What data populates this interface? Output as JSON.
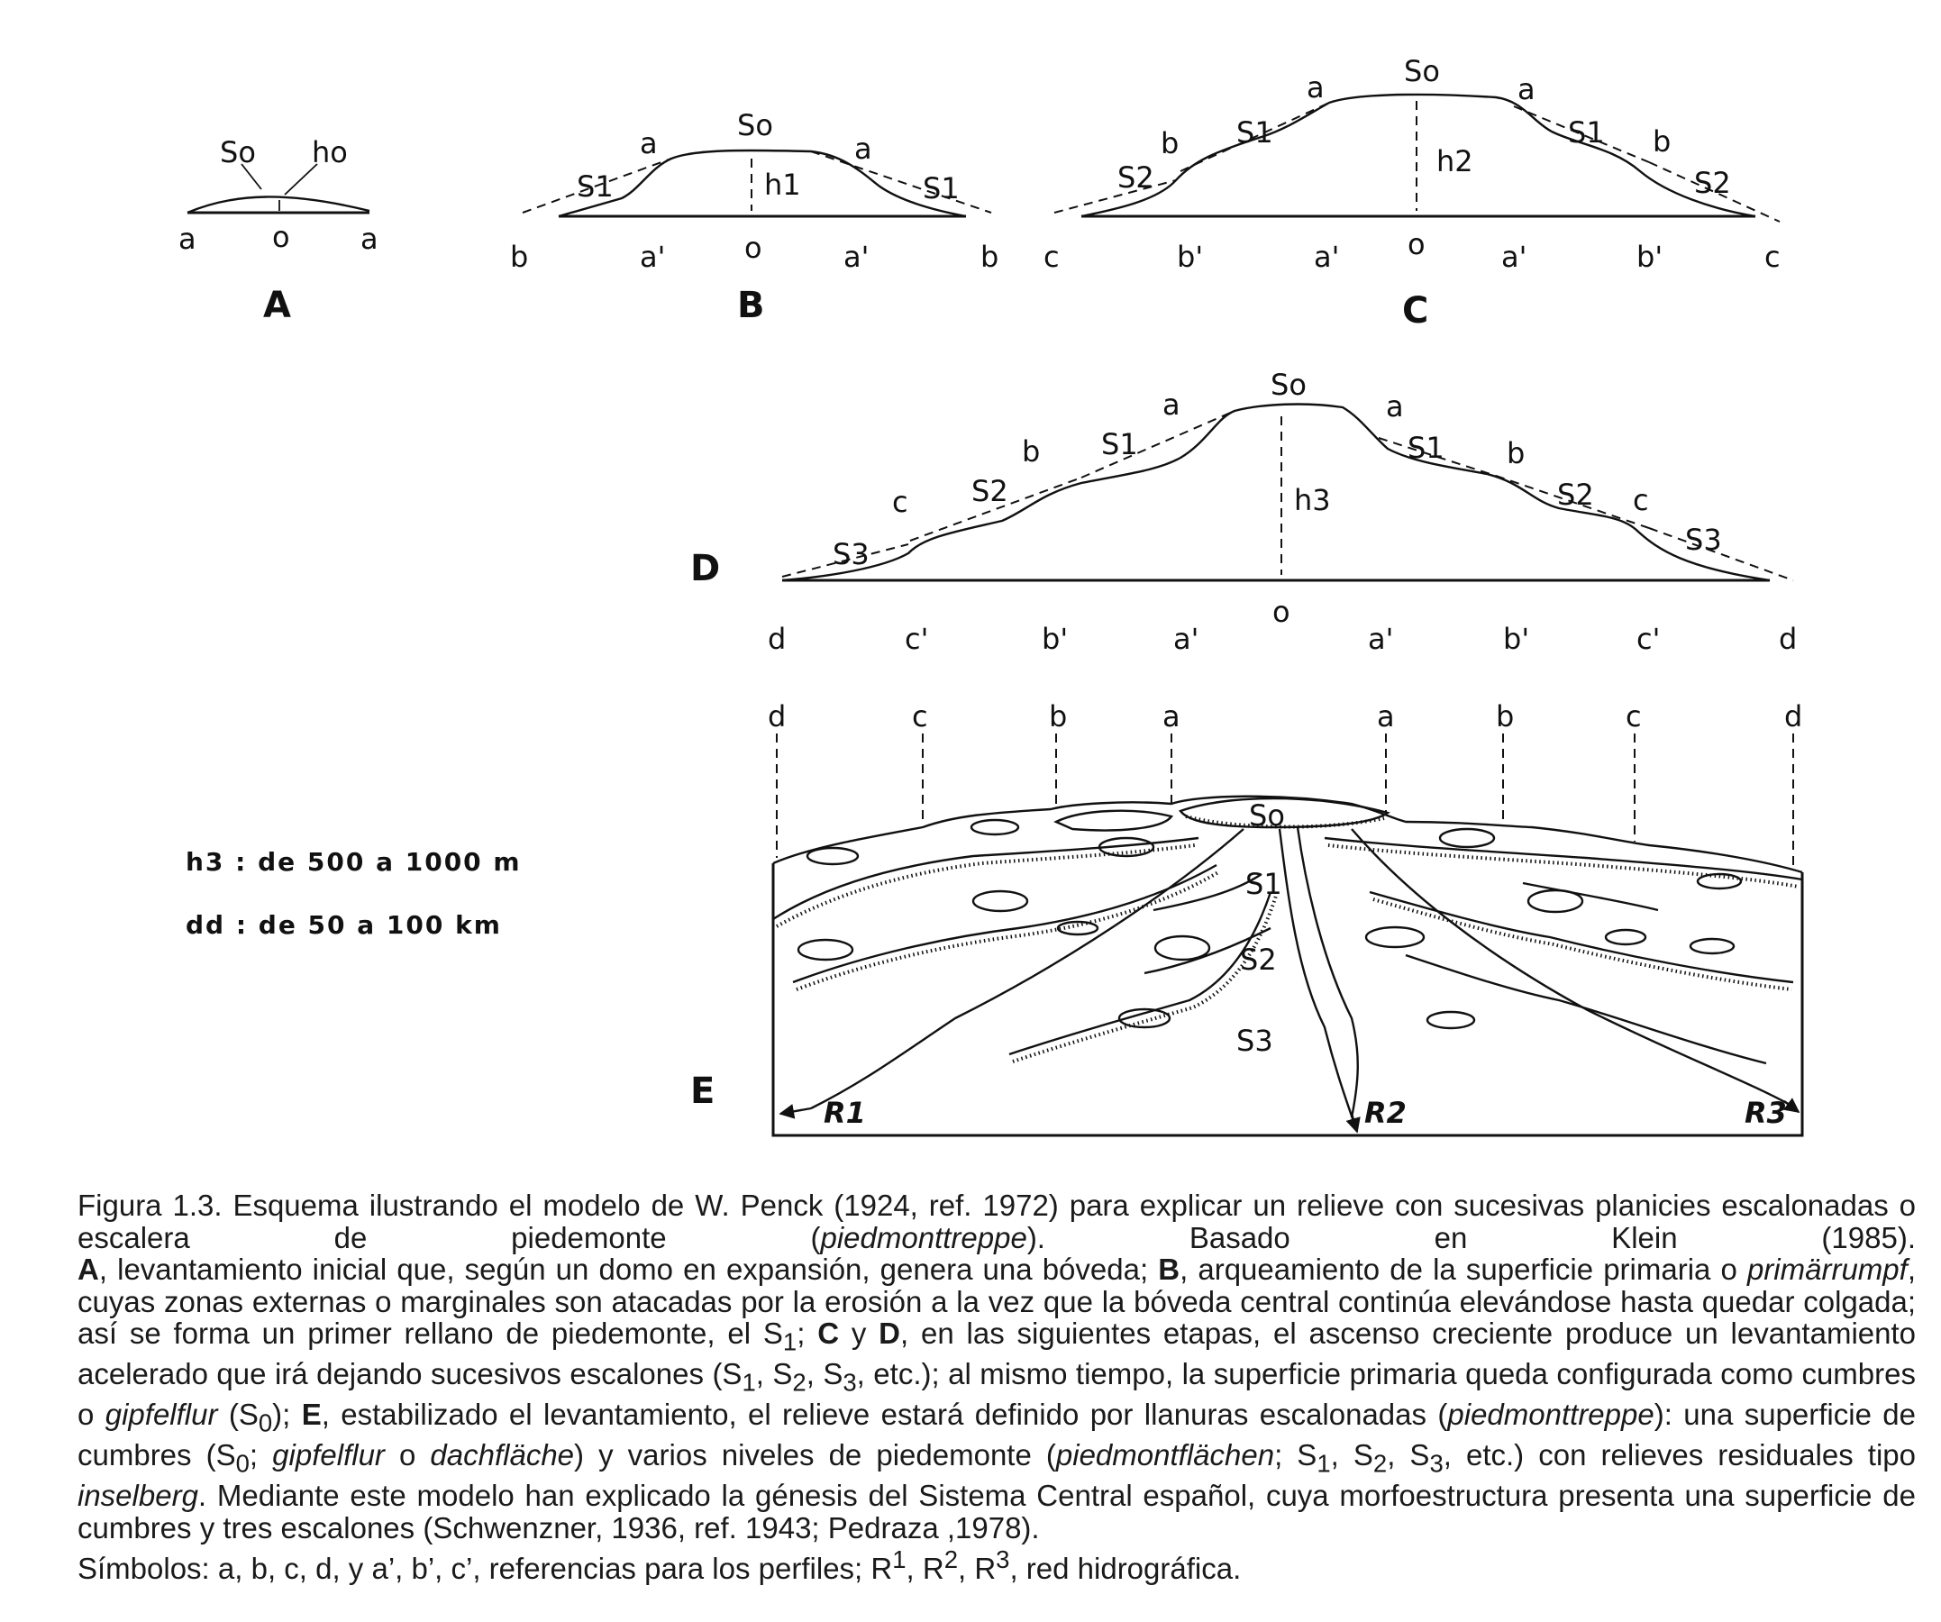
{
  "diagram": {
    "panels": [
      {
        "id": "A",
        "surface": "So",
        "height": "ho",
        "base": [
          "a",
          "o",
          "a"
        ]
      },
      {
        "id": "B",
        "surface": "So",
        "height": "h1",
        "top": [
          "a",
          "a"
        ],
        "flanks": [
          "S1",
          "S1"
        ],
        "base": [
          "b",
          "a'",
          "o",
          "a'",
          "b"
        ]
      },
      {
        "id": "C",
        "surface": "So",
        "height": "h2",
        "top": [
          "a",
          "b",
          "a",
          "b"
        ],
        "flanks": [
          "S1",
          "S2",
          "S1",
          "S2"
        ],
        "base": [
          "c",
          "b'",
          "a'",
          "o",
          "a'",
          "b'",
          "c"
        ]
      },
      {
        "id": "D",
        "surface": "So",
        "height": "h3",
        "top": [
          "a",
          "b",
          "c",
          "a",
          "b",
          "c"
        ],
        "flanks": [
          "S1",
          "S2",
          "S3",
          "S1",
          "S2",
          "S3"
        ],
        "base": [
          "d",
          "c'",
          "b'",
          "a'",
          "o",
          "a'",
          "b'",
          "c'",
          "d"
        ]
      },
      {
        "id": "E",
        "refs": [
          "d",
          "c",
          "b",
          "a",
          "a",
          "b",
          "c",
          "d"
        ],
        "surfaces": [
          "So",
          "S1",
          "S2",
          "S3"
        ],
        "rivers": [
          "R1",
          "R2",
          "R3"
        ]
      }
    ],
    "notes": [
      "h3 : de 500 a 1000 m",
      "dd : de 50 a 100 km"
    ]
  },
  "caption": {
    "p1": {
      "s1": "Figura 1.3. Esquema ilustrando el modelo de W. Penck (1924, ref. 1972) para explicar un relieve con sucesivas planicies escalonadas o escalera de piedemonte (",
      "i1": "piedmonttreppe",
      "s2": "). Basado en Klein (1985)."
    },
    "p2": {
      "b1": "A",
      "s1": ", levantamiento inicial que, según un domo en expansión, genera una bóveda; ",
      "b2": "B",
      "s2": ", arqueamiento de la superficie primaria o ",
      "i1": "primärrumpf",
      "s3": ", cuyas zonas externas o marginales son atacadas por la erosión a la vez que la bóveda central continúa elevándose hasta quedar colgada; así se forma un primer rellano de piedemonte, el S",
      "sub1": "1",
      "s4": "; ",
      "b3": "C",
      "s5": " y ",
      "b4": "D",
      "s6": ", en las siguientes etapas, el ascenso creciente produce un levantamiento acelerado que irá dejando sucesivos escalones (S",
      "sub2": "1",
      "s7": ", S",
      "sub3": "2",
      "s8": ", S",
      "sub4": "3",
      "s9": ", etc.); al mismo tiempo, la superficie primaria queda configurada como cumbres o ",
      "i2": "gipfelflur",
      "s10": " (S",
      "sub5": "0",
      "s11": "); ",
      "b5": "E",
      "s12": ", estabilizado el levantamiento, el relieve estará definido por llanuras escalonadas (",
      "i3": "piedmonttreppe",
      "s13": "): una superficie de cumbres (S",
      "sub6": "0",
      "s14": "; ",
      "i4": "gipfelflur",
      "s15": " o ",
      "i5": "dachfläche",
      "s16": ") y varios niveles de piedemonte (",
      "i6": "piedmontflächen",
      "s17": "; S",
      "sub7": "1",
      "s18": ", S",
      "sub8": "2",
      "s19": ", S",
      "sub9": "3",
      "s20": ", etc.) con relieves residuales tipo ",
      "i7": "inselberg",
      "s21": ". Mediante este modelo han explicado la génesis del Sistema Central español, cuya morfoestructura presenta una superficie de cumbres y tres escalones (Schwenzner, 1936, ref. 1943; Pedraza ,1978)."
    },
    "p3": {
      "s1": "Símbolos: a, b, c, d, y a’, b’, c’, referencias para los perfiles; R",
      "sup1": "1",
      "s2": ", R",
      "sup2": "2",
      "s3": ", R",
      "sup3": "3",
      "s4": ", red hidrográfica."
    }
  }
}
